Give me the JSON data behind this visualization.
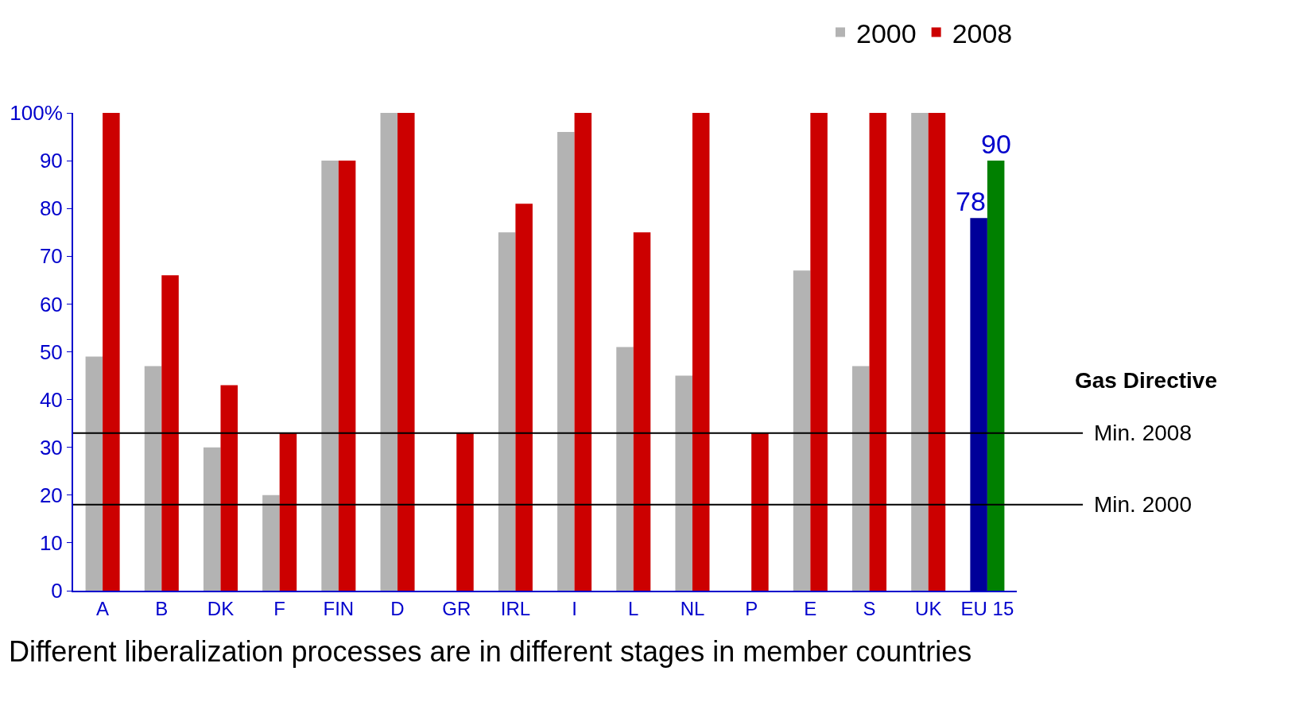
{
  "chart_data": {
    "type": "bar",
    "categories": [
      "A",
      "B",
      "DK",
      "F",
      "FIN",
      "D",
      "GR",
      "IRL",
      "I",
      "L",
      "NL",
      "P",
      "E",
      "S",
      "UK",
      "EU 15"
    ],
    "series": [
      {
        "name": "2000",
        "color": "#b3b3b3",
        "colors": [
          "#b3b3b3",
          "#b3b3b3",
          "#b3b3b3",
          "#b3b3b3",
          "#b3b3b3",
          "#b3b3b3",
          "#b3b3b3",
          "#b3b3b3",
          "#b3b3b3",
          "#b3b3b3",
          "#b3b3b3",
          "#b3b3b3",
          "#b3b3b3",
          "#b3b3b3",
          "#b3b3b3",
          "#000099"
        ],
        "values": [
          49,
          47,
          30,
          20,
          90,
          100,
          null,
          75,
          96,
          51,
          45,
          null,
          67,
          47,
          100,
          78
        ],
        "value_labels": [
          null,
          null,
          null,
          null,
          null,
          null,
          null,
          null,
          null,
          null,
          null,
          null,
          null,
          null,
          null,
          "78"
        ]
      },
      {
        "name": "2008",
        "color": "#cc0000",
        "colors": [
          "#cc0000",
          "#cc0000",
          "#cc0000",
          "#cc0000",
          "#cc0000",
          "#cc0000",
          "#cc0000",
          "#cc0000",
          "#cc0000",
          "#cc0000",
          "#cc0000",
          "#cc0000",
          "#cc0000",
          "#cc0000",
          "#cc0000",
          "#008000"
        ],
        "values": [
          100,
          66,
          43,
          33,
          90,
          100,
          33,
          81,
          100,
          75,
          100,
          33,
          100,
          100,
          100,
          90
        ],
        "value_labels": [
          null,
          null,
          null,
          null,
          null,
          null,
          null,
          null,
          null,
          null,
          null,
          null,
          null,
          null,
          null,
          "90"
        ]
      }
    ],
    "ylim": [
      0,
      100
    ],
    "yticks": [
      0,
      10,
      20,
      30,
      40,
      50,
      60,
      70,
      80,
      90,
      {
        "value": 100,
        "label": "100%"
      }
    ],
    "legend": "top right",
    "ref_lines": [
      {
        "axis": "y",
        "value": 33,
        "label": "Min. 2008",
        "color": "#000000"
      },
      {
        "axis": "y",
        "value": 18,
        "label": "Min. 2000",
        "color": "#000000"
      }
    ],
    "annotations": [
      "Gas Directive",
      "Different liberalization processes are in different stages in member countries"
    ]
  }
}
